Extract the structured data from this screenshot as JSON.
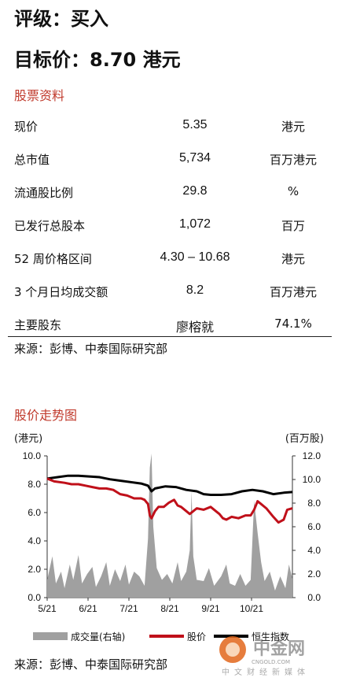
{
  "rating": "评级：买入",
  "target": "目标价：8.70 港元",
  "stock_info": {
    "title": "股票资料",
    "rows": [
      {
        "label": "现价",
        "value": "5.35",
        "unit": "港元"
      },
      {
        "label": "总市值",
        "value": "5,734",
        "unit": "百万港元"
      },
      {
        "label": "流通股比例",
        "value": "29.8",
        "unit": "%"
      },
      {
        "label": "已发行总股本",
        "value": "1,072",
        "unit": "百万"
      },
      {
        "label": "52 周价格区间",
        "value": "4.30 – 10.68",
        "unit": "港元"
      },
      {
        "label": "3 个月日均成交额",
        "value": "8.2",
        "unit": "百万港元"
      },
      {
        "label": "主要股东",
        "value": "廖榕就",
        "unit": "74.1%"
      }
    ],
    "source": "来源：彭博、中泰国际研究部"
  },
  "chart": {
    "title": "股价走势图",
    "source": "来源：彭博、中泰国际研究部"
  },
  "watermark": {
    "name": "中金网",
    "domain": "CNGOLD.COM",
    "slogan": "中文财经新媒体"
  },
  "chart_data": {
    "type": "line",
    "left_unit": "(港元)",
    "right_unit": "(百万股)",
    "ylim_left": [
      0,
      10
    ],
    "ylim_right": [
      0,
      12
    ],
    "yticks_left": [
      "0.0",
      "2.0",
      "4.0",
      "6.0",
      "8.0",
      "10.0"
    ],
    "yticks_right": [
      "0.0",
      "2.0",
      "4.0",
      "6.0",
      "8.0",
      "10.0",
      "12.0"
    ],
    "xticks": [
      "5/21",
      "6/21",
      "7/21",
      "8/21",
      "9/21",
      "10/21"
    ],
    "legend": [
      "成交量(右轴)",
      "股价",
      "恒生指数"
    ],
    "colors": {
      "volume": "#a0a0a0",
      "price": "#c0101a",
      "index": "#000000"
    },
    "series": [
      {
        "name": "股价",
        "axis": "left",
        "points": [
          [
            0,
            8.4
          ],
          [
            4,
            8.2
          ],
          [
            10,
            8.1
          ],
          [
            14,
            8.0
          ],
          [
            18,
            8.0
          ],
          [
            22,
            7.9
          ],
          [
            26,
            7.8
          ],
          [
            30,
            7.7
          ],
          [
            34,
            7.7
          ],
          [
            38,
            7.6
          ],
          [
            42,
            7.3
          ],
          [
            46,
            7.2
          ],
          [
            50,
            7.0
          ],
          [
            54,
            7.0
          ],
          [
            56,
            6.9
          ],
          [
            58,
            6.6
          ],
          [
            59,
            5.8
          ],
          [
            60,
            5.6
          ],
          [
            62,
            6.1
          ],
          [
            64,
            6.4
          ],
          [
            67,
            6.4
          ],
          [
            70,
            6.7
          ],
          [
            73,
            6.9
          ],
          [
            75,
            6.5
          ],
          [
            77,
            6.4
          ],
          [
            80,
            6.1
          ],
          [
            82,
            5.9
          ],
          [
            84,
            6.1
          ],
          [
            86,
            6.3
          ],
          [
            90,
            6.2
          ],
          [
            94,
            6.4
          ],
          [
            97,
            6.1
          ],
          [
            99,
            5.9
          ],
          [
            101,
            5.6
          ],
          [
            103,
            5.5
          ],
          [
            106,
            5.7
          ],
          [
            110,
            5.6
          ],
          [
            114,
            5.8
          ],
          [
            117,
            5.8
          ],
          [
            119,
            6.2
          ],
          [
            121,
            6.8
          ],
          [
            123,
            6.6
          ],
          [
            126,
            6.3
          ],
          [
            130,
            5.7
          ],
          [
            133,
            5.3
          ],
          [
            136,
            5.5
          ],
          [
            138,
            6.2
          ],
          [
            141,
            6.3
          ]
        ]
      },
      {
        "name": "恒生指数",
        "axis": "left",
        "points": [
          [
            0,
            8.4
          ],
          [
            6,
            8.5
          ],
          [
            12,
            8.6
          ],
          [
            18,
            8.6
          ],
          [
            24,
            8.55
          ],
          [
            30,
            8.5
          ],
          [
            36,
            8.35
          ],
          [
            42,
            8.25
          ],
          [
            48,
            8.15
          ],
          [
            54,
            8.05
          ],
          [
            58,
            7.9
          ],
          [
            60,
            7.5
          ],
          [
            62,
            7.7
          ],
          [
            68,
            7.85
          ],
          [
            74,
            7.8
          ],
          [
            80,
            7.6
          ],
          [
            86,
            7.5
          ],
          [
            90,
            7.3
          ],
          [
            94,
            7.25
          ],
          [
            100,
            7.25
          ],
          [
            106,
            7.3
          ],
          [
            112,
            7.5
          ],
          [
            118,
            7.6
          ],
          [
            124,
            7.5
          ],
          [
            130,
            7.3
          ],
          [
            136,
            7.4
          ],
          [
            141,
            7.45
          ]
        ]
      },
      {
        "name": "成交量(右轴)",
        "axis": "right",
        "points": [
          [
            0,
            1.5
          ],
          [
            3,
            3.5
          ],
          [
            5,
            1.2
          ],
          [
            8,
            2.2
          ],
          [
            10,
            0.8
          ],
          [
            13,
            2.8
          ],
          [
            15,
            1.5
          ],
          [
            18,
            3.6
          ],
          [
            20,
            1.2
          ],
          [
            23,
            2.0
          ],
          [
            26,
            2.6
          ],
          [
            28,
            0.9
          ],
          [
            31,
            1.8
          ],
          [
            34,
            3.0
          ],
          [
            36,
            1.0
          ],
          [
            39,
            2.4
          ],
          [
            42,
            1.4
          ],
          [
            45,
            2.8
          ],
          [
            47,
            1.1
          ],
          [
            50,
            2.2
          ],
          [
            53,
            1.8
          ],
          [
            56,
            1.0
          ],
          [
            58,
            5.0
          ],
          [
            59,
            11.0
          ],
          [
            60,
            12.2
          ],
          [
            61,
            6.0
          ],
          [
            63,
            2.5
          ],
          [
            66,
            1.5
          ],
          [
            69,
            2.0
          ],
          [
            72,
            1.2
          ],
          [
            75,
            3.0
          ],
          [
            77,
            1.4
          ],
          [
            80,
            2.2
          ],
          [
            82,
            4.0
          ],
          [
            83,
            9.0
          ],
          [
            84,
            3.5
          ],
          [
            86,
            1.5
          ],
          [
            90,
            1.4
          ],
          [
            93,
            2.5
          ],
          [
            96,
            1.0
          ],
          [
            100,
            1.8
          ],
          [
            103,
            2.8
          ],
          [
            105,
            1.2
          ],
          [
            108,
            1.0
          ],
          [
            111,
            2.0
          ],
          [
            114,
            1.0
          ],
          [
            117,
            1.5
          ],
          [
            119,
            8.2
          ],
          [
            121,
            5.5
          ],
          [
            123,
            3.0
          ],
          [
            125,
            1.4
          ],
          [
            128,
            2.2
          ],
          [
            131,
            0.6
          ],
          [
            134,
            1.8
          ],
          [
            137,
            0.8
          ],
          [
            139,
            2.8
          ],
          [
            141,
            1.6
          ]
        ]
      }
    ],
    "x_count": 141
  }
}
